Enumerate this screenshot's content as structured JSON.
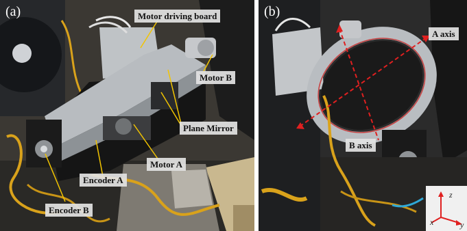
{
  "panel_a": {
    "tag": "(a)",
    "labels": {
      "motor_driving_board": "Motor driving board",
      "motor_b": "Motor B",
      "plane_mirror": "Plane Mirror",
      "motor_a": "Motor A",
      "encoder_a": "Encoder A",
      "encoder_b": "Encoder B"
    },
    "colors": {
      "label_bg": "#e2e2e2",
      "leader": "#f2c400",
      "foil": "#d9a21b"
    }
  },
  "panel_b": {
    "tag": "(b)",
    "labels": {
      "a_axis": "A axis",
      "b_axis": "B axis"
    },
    "coord_axes": {
      "z": "z",
      "x": "x",
      "y": "y"
    },
    "colors": {
      "axis_line": "#e02020",
      "label_bg": "#e2e2e2"
    }
  }
}
